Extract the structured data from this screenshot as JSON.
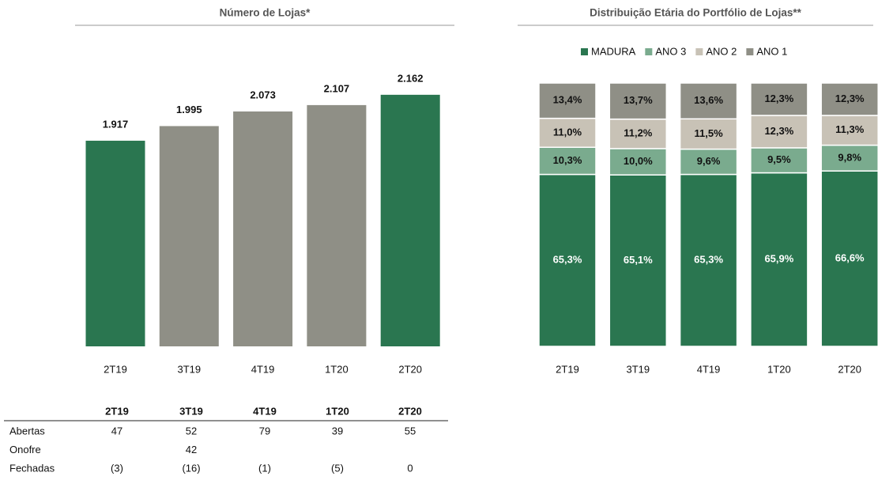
{
  "chart_data": [
    {
      "type": "bar",
      "title": "Número de Lojas*",
      "categories": [
        "2T19",
        "3T19",
        "4T19",
        "1T20",
        "2T20"
      ],
      "values": [
        1917,
        1995,
        2073,
        2107,
        2162
      ],
      "value_labels": [
        "1.917",
        "1.995",
        "2.073",
        "2.107",
        "2.162"
      ],
      "colors": [
        "#2a7650",
        "#8f8f86",
        "#8f8f86",
        "#8f8f86",
        "#2a7650"
      ],
      "ylim": [
        820,
        2250
      ]
    },
    {
      "type": "stacked_bar",
      "title": "Distribuição Etária do Portfólio de Lojas**",
      "categories": [
        "2T19",
        "3T19",
        "4T19",
        "1T20",
        "2T20"
      ],
      "series": [
        {
          "name": "MADURA",
          "color": "#2a7650",
          "values": [
            65.3,
            65.1,
            65.3,
            65.9,
            66.6
          ],
          "value_labels": [
            "65,3%",
            "65,1%",
            "65,3%",
            "65,9%",
            "66,6%"
          ]
        },
        {
          "name": "ANO 3",
          "color": "#7aab8e",
          "values": [
            10.3,
            10.0,
            9.6,
            9.5,
            9.8
          ],
          "value_labels": [
            "10,3%",
            "10,0%",
            "9,6%",
            "9,5%",
            "9,8%"
          ]
        },
        {
          "name": "ANO 2",
          "color": "#c8c2b6",
          "values": [
            11.0,
            11.2,
            11.5,
            12.3,
            11.3
          ],
          "value_labels": [
            "11,0%",
            "11,2%",
            "11,5%",
            "12,3%",
            "11,3%"
          ]
        },
        {
          "name": "ANO 1",
          "color": "#8f8f86",
          "values": [
            13.4,
            13.7,
            13.6,
            12.3,
            12.3
          ],
          "value_labels": [
            "13,4%",
            "13,7%",
            "13,6%",
            "12,3%",
            "12,3%"
          ]
        }
      ],
      "ylim": [
        0,
        100
      ],
      "legend": "top"
    }
  ],
  "table": {
    "header": [
      "2T19",
      "3T19",
      "4T19",
      "1T20",
      "2T20"
    ],
    "rows": [
      {
        "label": "Abertas",
        "values": [
          "47",
          "52",
          "79",
          "39",
          "55"
        ]
      },
      {
        "label": "Onofre",
        "values": [
          null,
          "42",
          null,
          null,
          null
        ]
      },
      {
        "label": "Fechadas",
        "values": [
          "(3)",
          "(16)",
          "(1)",
          "(5)",
          "0"
        ]
      }
    ]
  }
}
